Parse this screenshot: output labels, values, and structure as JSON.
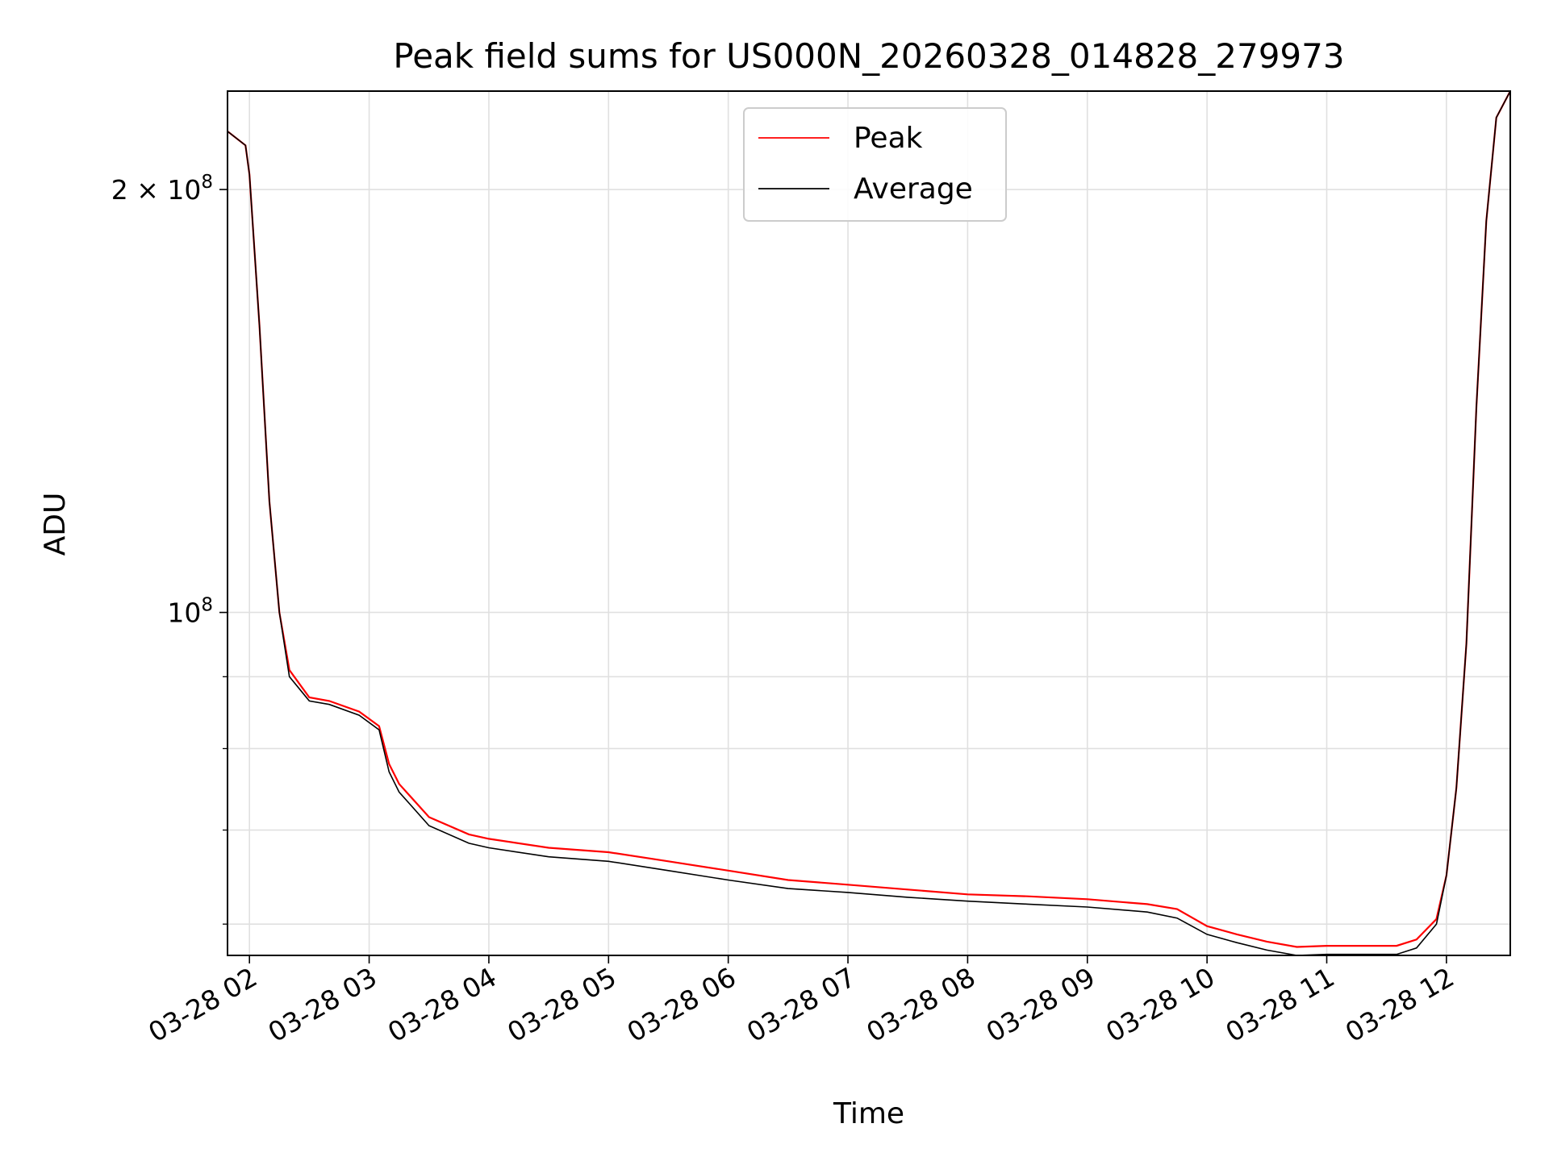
{
  "chart_data": {
    "type": "line",
    "title": "Peak field sums for US000N_20260328_014828_279973",
    "xlabel": "Time",
    "ylabel": "ADU",
    "yscale": "log",
    "ylim": [
      57000000,
      235000000
    ],
    "xlim": [
      "03-28 01:49",
      "03-28 12:32"
    ],
    "grid": true,
    "legend_position": "upper center",
    "x_ticks": [
      "03-28 02",
      "03-28 03",
      "03-28 04",
      "03-28 05",
      "03-28 06",
      "03-28 07",
      "03-28 08",
      "03-28 09",
      "03-28 10",
      "03-28 11",
      "03-28 12"
    ],
    "y_ticks": [
      {
        "value": 200000000,
        "label_base": "2 × 10",
        "label_exp": "8"
      },
      {
        "value": 100000000,
        "label_base": "10",
        "label_exp": "8"
      }
    ],
    "y_minor_ticks": [
      60000000,
      70000000,
      80000000,
      90000000
    ],
    "colors": {
      "Peak": "#ff0000",
      "Average": "#000000"
    },
    "series": [
      {
        "name": "Peak",
        "color": "#ff0000",
        "x": [
          "03-28 01:49",
          "03-28 01:58",
          "03-28 02:00",
          "03-28 02:05",
          "03-28 02:10",
          "03-28 02:15",
          "03-28 02:20",
          "03-28 02:30",
          "03-28 02:40",
          "03-28 02:55",
          "03-28 03:05",
          "03-28 03:10",
          "03-28 03:15",
          "03-28 03:30",
          "03-28 03:50",
          "03-28 04:00",
          "03-28 04:30",
          "03-28 05:00",
          "03-28 05:30",
          "03-28 06:00",
          "03-28 06:30",
          "03-28 07:00",
          "03-28 07:30",
          "03-28 08:00",
          "03-28 08:30",
          "03-28 09:00",
          "03-28 09:30",
          "03-28 09:45",
          "03-28 10:00",
          "03-28 10:15",
          "03-28 10:30",
          "03-28 10:45",
          "03-28 11:00",
          "03-28 11:20",
          "03-28 11:35",
          "03-28 11:45",
          "03-28 11:55",
          "03-28 12:00",
          "03-28 12:05",
          "03-28 12:10",
          "03-28 12:15",
          "03-28 12:20",
          "03-28 12:25",
          "03-28 12:32"
        ],
        "y": [
          220000000,
          215000000,
          205000000,
          160000000,
          120000000,
          100000000,
          91000000,
          87000000,
          86500000,
          85000000,
          83000000,
          78000000,
          75500000,
          71500000,
          69500000,
          69000000,
          68000000,
          67500000,
          66500000,
          65500000,
          64500000,
          64000000,
          63500000,
          63000000,
          62800000,
          62500000,
          62000000,
          61500000,
          59800000,
          59000000,
          58300000,
          57800000,
          57900000,
          57900000,
          57900000,
          58500000,
          60500000,
          65000000,
          75000000,
          95000000,
          140000000,
          190000000,
          225000000,
          235000000
        ]
      },
      {
        "name": "Average",
        "color": "#000000",
        "x": [
          "03-28 01:49",
          "03-28 01:58",
          "03-28 02:00",
          "03-28 02:05",
          "03-28 02:10",
          "03-28 02:15",
          "03-28 02:20",
          "03-28 02:30",
          "03-28 02:40",
          "03-28 02:55",
          "03-28 03:05",
          "03-28 03:10",
          "03-28 03:15",
          "03-28 03:30",
          "03-28 03:50",
          "03-28 04:00",
          "03-28 04:30",
          "03-28 05:00",
          "03-28 05:30",
          "03-28 06:00",
          "03-28 06:30",
          "03-28 07:00",
          "03-28 07:30",
          "03-28 08:00",
          "03-28 08:30",
          "03-28 09:00",
          "03-28 09:30",
          "03-28 09:45",
          "03-28 10:00",
          "03-28 10:15",
          "03-28 10:30",
          "03-28 10:45",
          "03-28 11:00",
          "03-28 11:20",
          "03-28 11:35",
          "03-28 11:45",
          "03-28 11:55",
          "03-28 12:00",
          "03-28 12:05",
          "03-28 12:10",
          "03-28 12:15",
          "03-28 12:20",
          "03-28 12:25",
          "03-28 12:32"
        ],
        "y": [
          220000000,
          215000000,
          205000000,
          160000000,
          120000000,
          100000000,
          90000000,
          86500000,
          86000000,
          84500000,
          82500000,
          77000000,
          74500000,
          70500000,
          68500000,
          68000000,
          67000000,
          66500000,
          65500000,
          64500000,
          63600000,
          63200000,
          62700000,
          62300000,
          62000000,
          61700000,
          61200000,
          60600000,
          59000000,
          58200000,
          57500000,
          57000000,
          57100000,
          57100000,
          57100000,
          57700000,
          60000000,
          65000000,
          75000000,
          95000000,
          140000000,
          190000000,
          225000000,
          235000000
        ]
      }
    ]
  }
}
